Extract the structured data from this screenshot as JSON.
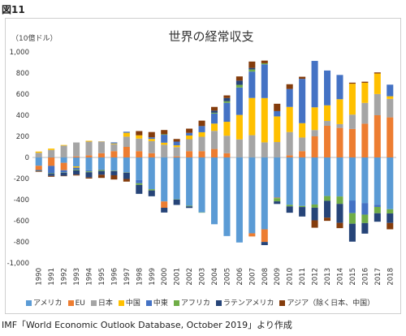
{
  "figure_label": "図11",
  "source": "IMF「World Economic Outlook Database, October 2019」より作成",
  "chart_data": {
    "type": "bar",
    "stacked": true,
    "title": "世界の経常収支",
    "ylabel": "（10億ドル）",
    "ylim": [
      -1000,
      1000
    ],
    "yticks": [
      -1000,
      -800,
      -600,
      -400,
      -200,
      0,
      200,
      400,
      600,
      800,
      1000
    ],
    "ytick_labels": [
      "-1,000",
      "-800",
      "-600",
      "-400",
      "-200",
      "0",
      "200",
      "400",
      "600",
      "800",
      "1,000"
    ],
    "grid": false,
    "legend_position": "bottom",
    "categories": [
      "1990",
      "1991",
      "1992",
      "1993",
      "1994",
      "1995",
      "1996",
      "1997",
      "1998",
      "1999",
      "2000",
      "2001",
      "2002",
      "2003",
      "2004",
      "2005",
      "2006",
      "2007",
      "2008",
      "2009",
      "2010",
      "2011",
      "2012",
      "2013",
      "2014",
      "2015",
      "2016",
      "2017",
      "2018"
    ],
    "series": [
      {
        "name": "アメリカ",
        "color": "#5B9BD5",
        "values": [
          -79,
          3,
          -51,
          -85,
          -122,
          -114,
          -125,
          -141,
          -215,
          -301,
          -417,
          -397,
          -458,
          -521,
          -633,
          -745,
          -806,
          -719,
          -681,
          -381,
          -449,
          -460,
          -446,
          -366,
          -370,
          -408,
          -432,
          -449,
          -491
        ]
      },
      {
        "name": "EU",
        "color": "#ED7D31",
        "values": [
          -40,
          -80,
          -70,
          10,
          20,
          40,
          60,
          100,
          60,
          40,
          -60,
          10,
          60,
          60,
          80,
          40,
          0,
          -30,
          -120,
          -5,
          20,
          60,
          200,
          300,
          280,
          270,
          320,
          400,
          380
        ]
      },
      {
        "name": "日本",
        "color": "#A5A5A5",
        "values": [
          44,
          68,
          112,
          132,
          130,
          111,
          66,
          97,
          119,
          115,
          120,
          88,
          113,
          136,
          172,
          166,
          171,
          211,
          143,
          146,
          221,
          129,
          60,
          46,
          36,
          136,
          197,
          201,
          175
        ]
      },
      {
        "name": "中国",
        "color": "#FFC000",
        "values": [
          12,
          13,
          6,
          -12,
          8,
          2,
          7,
          37,
          31,
          21,
          20,
          17,
          35,
          43,
          69,
          132,
          232,
          353,
          420,
          243,
          238,
          136,
          215,
          148,
          236,
          293,
          191,
          195,
          25
        ]
      },
      {
        "name": "中東",
        "color": "#4472C4",
        "values": [
          -5,
          -70,
          -20,
          -20,
          -10,
          -5,
          10,
          10,
          -30,
          15,
          75,
          35,
          25,
          55,
          95,
          180,
          260,
          250,
          320,
          50,
          170,
          420,
          440,
          330,
          230,
          -120,
          -110,
          -20,
          110
        ]
      },
      {
        "name": "アフリカ",
        "color": "#70AD47",
        "values": [
          -2,
          -5,
          -3,
          -6,
          -8,
          -10,
          -4,
          -3,
          -15,
          -12,
          5,
          -3,
          -6,
          -3,
          8,
          15,
          25,
          20,
          10,
          -30,
          -15,
          -10,
          -30,
          -45,
          -70,
          -100,
          -80,
          -60,
          -40
        ]
      },
      {
        "name": "ラテンアメリカ",
        "color": "#264478",
        "values": [
          -5,
          -20,
          -30,
          -40,
          -50,
          -35,
          -40,
          -60,
          -85,
          -55,
          -45,
          -50,
          -15,
          5,
          20,
          30,
          40,
          15,
          -30,
          -25,
          -60,
          -90,
          -120,
          -160,
          -180,
          -170,
          -100,
          -80,
          -90
        ]
      },
      {
        "name": "アジア（除く日本、中国）",
        "color": "#843C0C",
        "values": [
          -5,
          -8,
          -4,
          -8,
          -10,
          -30,
          -40,
          -25,
          40,
          50,
          40,
          25,
          40,
          50,
          35,
          25,
          40,
          60,
          25,
          70,
          45,
          20,
          -70,
          -30,
          -50,
          10,
          10,
          10,
          -60
        ]
      }
    ]
  }
}
